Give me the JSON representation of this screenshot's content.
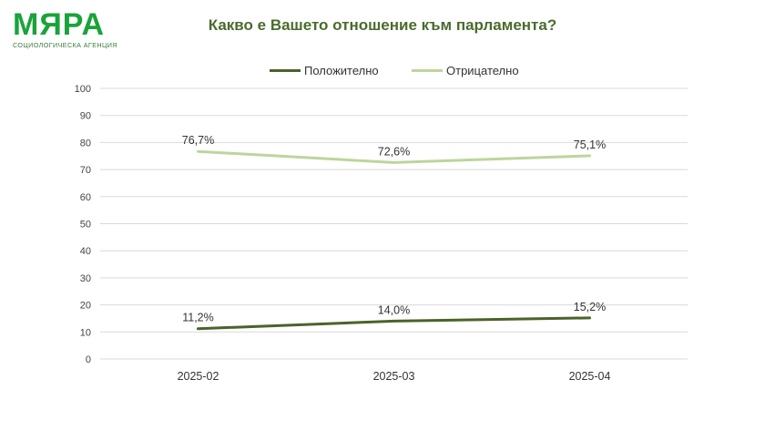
{
  "brand": {
    "name": "МЯРА",
    "tagline": "СОЦИОЛОГИЧЕСКА АГЕНЦИЯ",
    "color": "#1aa33a"
  },
  "chart_data": {
    "type": "line",
    "title": "Какво е Вашето отношение към парламента?",
    "categories": [
      "2025-02",
      "2025-03",
      "2025-04"
    ],
    "ylim": [
      0,
      100
    ],
    "yticks": [
      0,
      10,
      20,
      30,
      40,
      50,
      60,
      70,
      80,
      90,
      100
    ],
    "grid": true,
    "legend_position": "top-center",
    "series": [
      {
        "name": "Положително",
        "values": [
          11.2,
          14.0,
          15.2
        ],
        "labels": [
          "11,2%",
          "14,0%",
          "15,2%"
        ],
        "color": "#4b6328"
      },
      {
        "name": "Отрицателно",
        "values": [
          76.7,
          72.6,
          75.1
        ],
        "labels": [
          "76,7%",
          "72,6%",
          "75,1%"
        ],
        "color": "#bcd69a"
      }
    ]
  }
}
